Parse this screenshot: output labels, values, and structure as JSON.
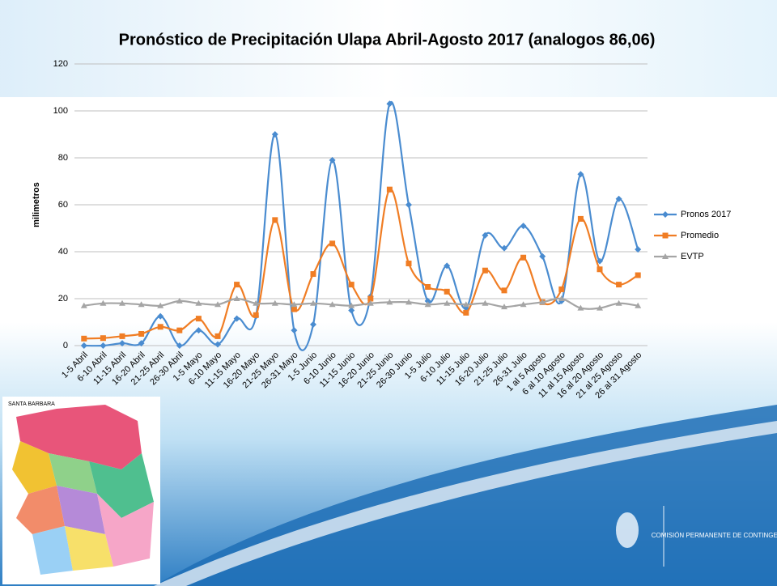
{
  "chart_data": {
    "type": "line",
    "title": "Pronóstico de Precipitación Ulapa Abril-Agosto 2017 (analogos 86,06)",
    "y_label": "milimetros",
    "categories": [
      "1-5 Abril",
      "6-10 Abril",
      "11-15 Abril",
      "16-20 Abril",
      "21-25 Abril",
      "26-30 Abril",
      "1-5 Mayo",
      "6-10 Mayo",
      "11-15 Mayo",
      "16-20 Mayo",
      "21-25 Mayo",
      "26-31 Mayo",
      "1-5 Junio",
      "6-10 Junio",
      "11-15 Junio",
      "16-20 Junio",
      "21-25 Junio",
      "26-30 Junio",
      "1-5 Julio",
      "6-10 Julio",
      "11-15 Julio",
      "16-20 Julio",
      "21-25 Julio",
      "26-31 Julio",
      "1 al 5 Agosto",
      "6 al 10 Agosto",
      "11 al 15 Agosto",
      "16 al 20 Agosto",
      "21 al 25 Agosto",
      "26 al 31 Agosto"
    ],
    "series": [
      {
        "name": "Pronos 2017",
        "color": "#4a8cd0",
        "marker": "diamond",
        "values": [
          0,
          0,
          1,
          1,
          12.5,
          0,
          6.5,
          0.5,
          11.5,
          12.5,
          90,
          6.5,
          9,
          79,
          15,
          21,
          103,
          60,
          19,
          34,
          16,
          47,
          41.5,
          51,
          38,
          19,
          73,
          36,
          62.5,
          41
        ]
      },
      {
        "name": "Promedio",
        "color": "#f07d24",
        "marker": "square",
        "values": [
          3,
          3.2,
          4,
          5,
          8,
          6.5,
          11.5,
          4,
          26,
          13,
          53.5,
          15.5,
          30.5,
          43.5,
          26,
          20,
          66.5,
          35,
          25,
          23,
          14,
          32,
          23.5,
          37.5,
          18.5,
          24,
          54,
          32.5,
          26,
          30
        ]
      },
      {
        "name": "EVTP",
        "color": "#a5a5a5",
        "marker": "triangle",
        "values": [
          17,
          18,
          18,
          17.5,
          17,
          19,
          18,
          17.5,
          20,
          18,
          18,
          17.5,
          18,
          17.5,
          17,
          18,
          18.5,
          18.5,
          17.5,
          18,
          17.5,
          18,
          16.5,
          17.5,
          18.5,
          20,
          16,
          16,
          18,
          17
        ]
      }
    ],
    "ylim": [
      0,
      120
    ],
    "yticks": [
      0,
      20,
      40,
      60,
      80,
      100,
      120
    ],
    "grid": true,
    "legend": "right",
    "smooth": true
  },
  "slide": {
    "logo_text": "COMISIÓN PERMANENTE DE CONTINGENCIAS",
    "map_title": "SANTA BARBARA"
  }
}
